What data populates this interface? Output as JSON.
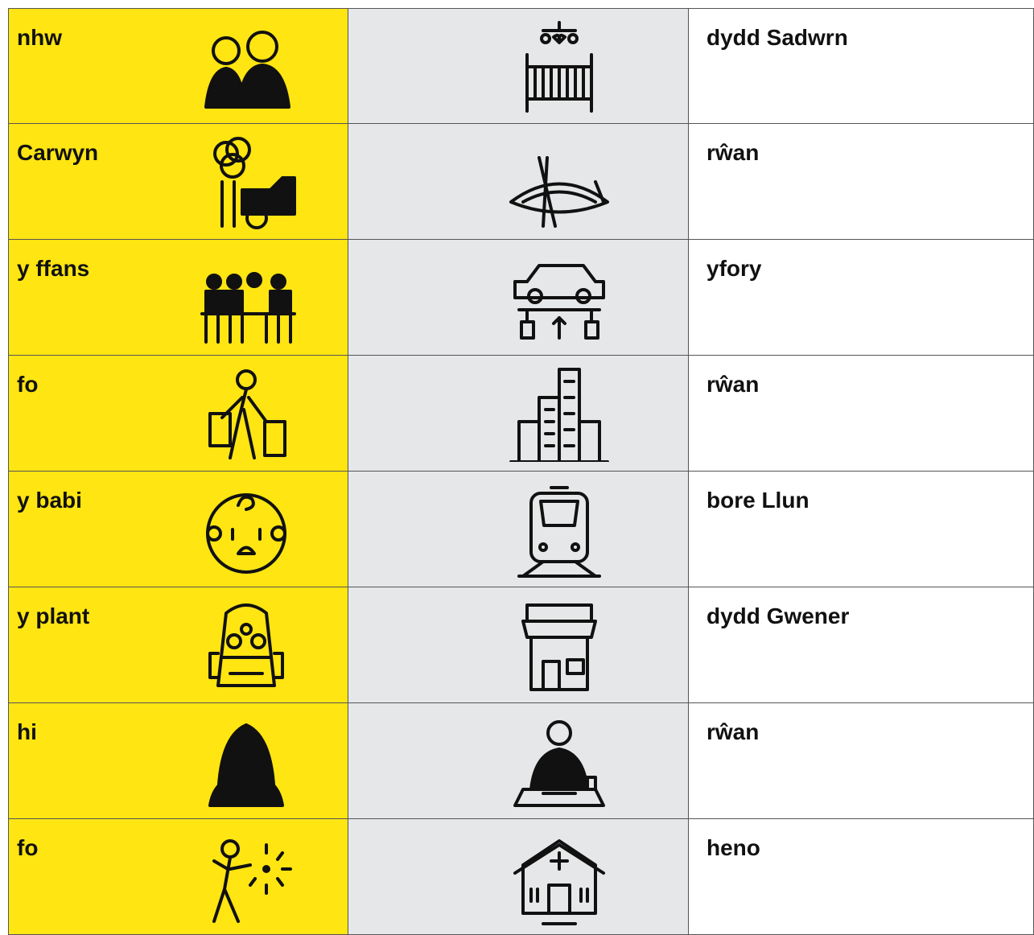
{
  "table": {
    "rows": [
      [
        "nhw",
        "dydd Sadwrn"
      ],
      [
        "Carwyn",
        "rŵan"
      ],
      [
        "y ffans",
        "yfory"
      ],
      [
        "fo",
        "rŵan"
      ],
      [
        "y babi",
        "bore Llun"
      ],
      [
        "y plant",
        "dydd Gwener"
      ],
      [
        "hi",
        "rŵan"
      ],
      [
        "fo",
        "heno"
      ]
    ]
  }
}
